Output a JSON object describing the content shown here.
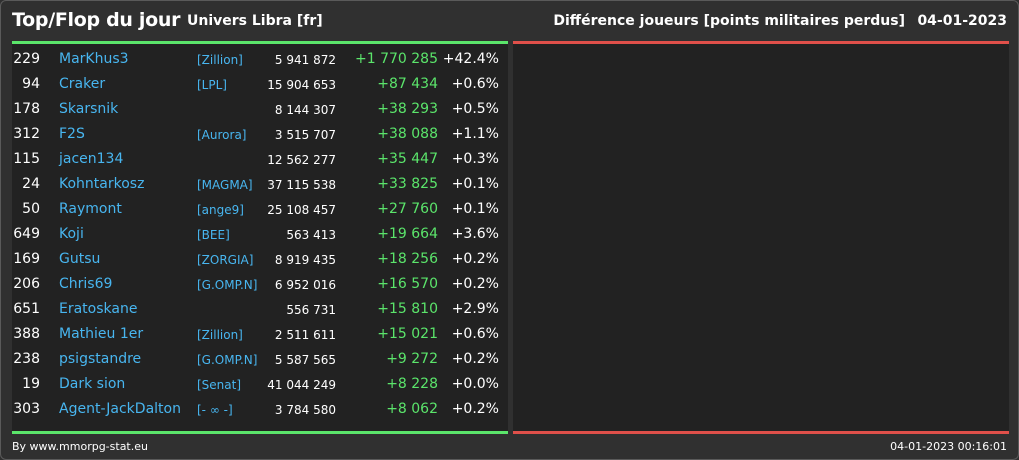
{
  "header": {
    "title": "Top/Flop du jour",
    "universe": "Univers Libra [fr]",
    "subtitle": "Différence joueurs [points militaires perdus]",
    "date": "04-01-2023"
  },
  "colors": {
    "name": "#48b6f0",
    "gain": "#5be56b",
    "top_bar": "#5be56b",
    "flop_bar": "#e0504a"
  },
  "top_rows": [
    {
      "rank": "229",
      "name": "MarKhus3",
      "alliance": "[Zillion]",
      "points": "5 941 872",
      "diff": "+1 770 285",
      "pct": "+42.4%"
    },
    {
      "rank": "94",
      "name": "Craker",
      "alliance": "[LPL]",
      "points": "15 904 653",
      "diff": "+87 434",
      "pct": "+0.6%"
    },
    {
      "rank": "178",
      "name": "Skarsnik",
      "alliance": "",
      "points": "8 144 307",
      "diff": "+38 293",
      "pct": "+0.5%"
    },
    {
      "rank": "312",
      "name": "F2S",
      "alliance": "[Aurora]",
      "points": "3 515 707",
      "diff": "+38 088",
      "pct": "+1.1%"
    },
    {
      "rank": "115",
      "name": "jacen134",
      "alliance": "",
      "points": "12 562 277",
      "diff": "+35 447",
      "pct": "+0.3%"
    },
    {
      "rank": "24",
      "name": "Kohntarkosz",
      "alliance": "[MAGMA]",
      "points": "37 115 538",
      "diff": "+33 825",
      "pct": "+0.1%"
    },
    {
      "rank": "50",
      "name": "Raymont",
      "alliance": "[ange9]",
      "points": "25 108 457",
      "diff": "+27 760",
      "pct": "+0.1%"
    },
    {
      "rank": "649",
      "name": "Koji",
      "alliance": "[BEE]",
      "points": "563 413",
      "diff": "+19 664",
      "pct": "+3.6%"
    },
    {
      "rank": "169",
      "name": "Gutsu",
      "alliance": "[ZORGIA]",
      "points": "8 919 435",
      "diff": "+18 256",
      "pct": "+0.2%"
    },
    {
      "rank": "206",
      "name": "Chris69",
      "alliance": "[G.OMP.N]",
      "points": "6 952 016",
      "diff": "+16 570",
      "pct": "+0.2%"
    },
    {
      "rank": "651",
      "name": "Eratoskane",
      "alliance": "",
      "points": "556 731",
      "diff": "+15 810",
      "pct": "+2.9%"
    },
    {
      "rank": "388",
      "name": "Mathieu 1er",
      "alliance": "[Zillion]",
      "points": "2 511 611",
      "diff": "+15 021",
      "pct": "+0.6%"
    },
    {
      "rank": "238",
      "name": "psigstandre",
      "alliance": "[G.OMP.N]",
      "points": "5 587 565",
      "diff": "+9 272",
      "pct": "+0.2%"
    },
    {
      "rank": "19",
      "name": "Dark sion",
      "alliance": "[Senat]",
      "points": "41 044 249",
      "diff": "+8 228",
      "pct": "+0.0%"
    },
    {
      "rank": "303",
      "name": "Agent-JackDalton",
      "alliance": "[- ∞ -]",
      "points": "3 784 580",
      "diff": "+8 062",
      "pct": "+0.2%"
    }
  ],
  "footer": {
    "credit": "By www.mmorpg-stat.eu",
    "timestamp": "04-01-2023 00:16:01"
  }
}
